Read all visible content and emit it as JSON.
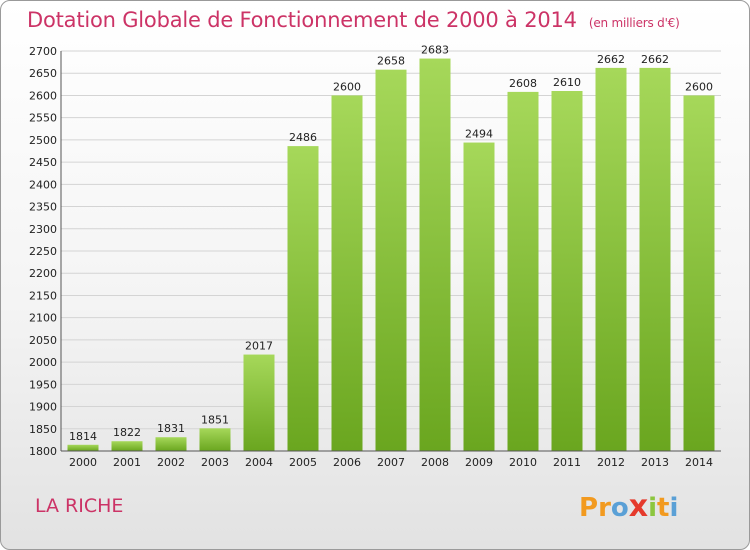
{
  "chart_data": {
    "type": "bar",
    "title": "Dotation Globale de Fonctionnement de 2000 à 2014",
    "subtitle": "(en milliers d'€)",
    "categories": [
      "2000",
      "2001",
      "2002",
      "2003",
      "2004",
      "2005",
      "2006",
      "2007",
      "2008",
      "2009",
      "2010",
      "2011",
      "2012",
      "2013",
      "2014"
    ],
    "values": [
      1814,
      1822,
      1831,
      1851,
      2017,
      2486,
      2600,
      2658,
      2683,
      2494,
      2608,
      2610,
      2662,
      2662,
      2600
    ],
    "ylim": [
      1800,
      2700
    ],
    "ytick_step": 50,
    "grid": true,
    "bar_color_top": "#a6d85a",
    "bar_color_bottom": "#6aa61f"
  },
  "commune": "LA RICHE",
  "logo": {
    "letters": [
      "P",
      "r",
      "o",
      "x",
      "i",
      "t",
      "i"
    ],
    "colors": [
      "#f29a1f",
      "#f29a1f",
      "#5aa0d6",
      "#e53a2c",
      "#8cc63f",
      "#f29a1f",
      "#5aa0d6"
    ]
  }
}
